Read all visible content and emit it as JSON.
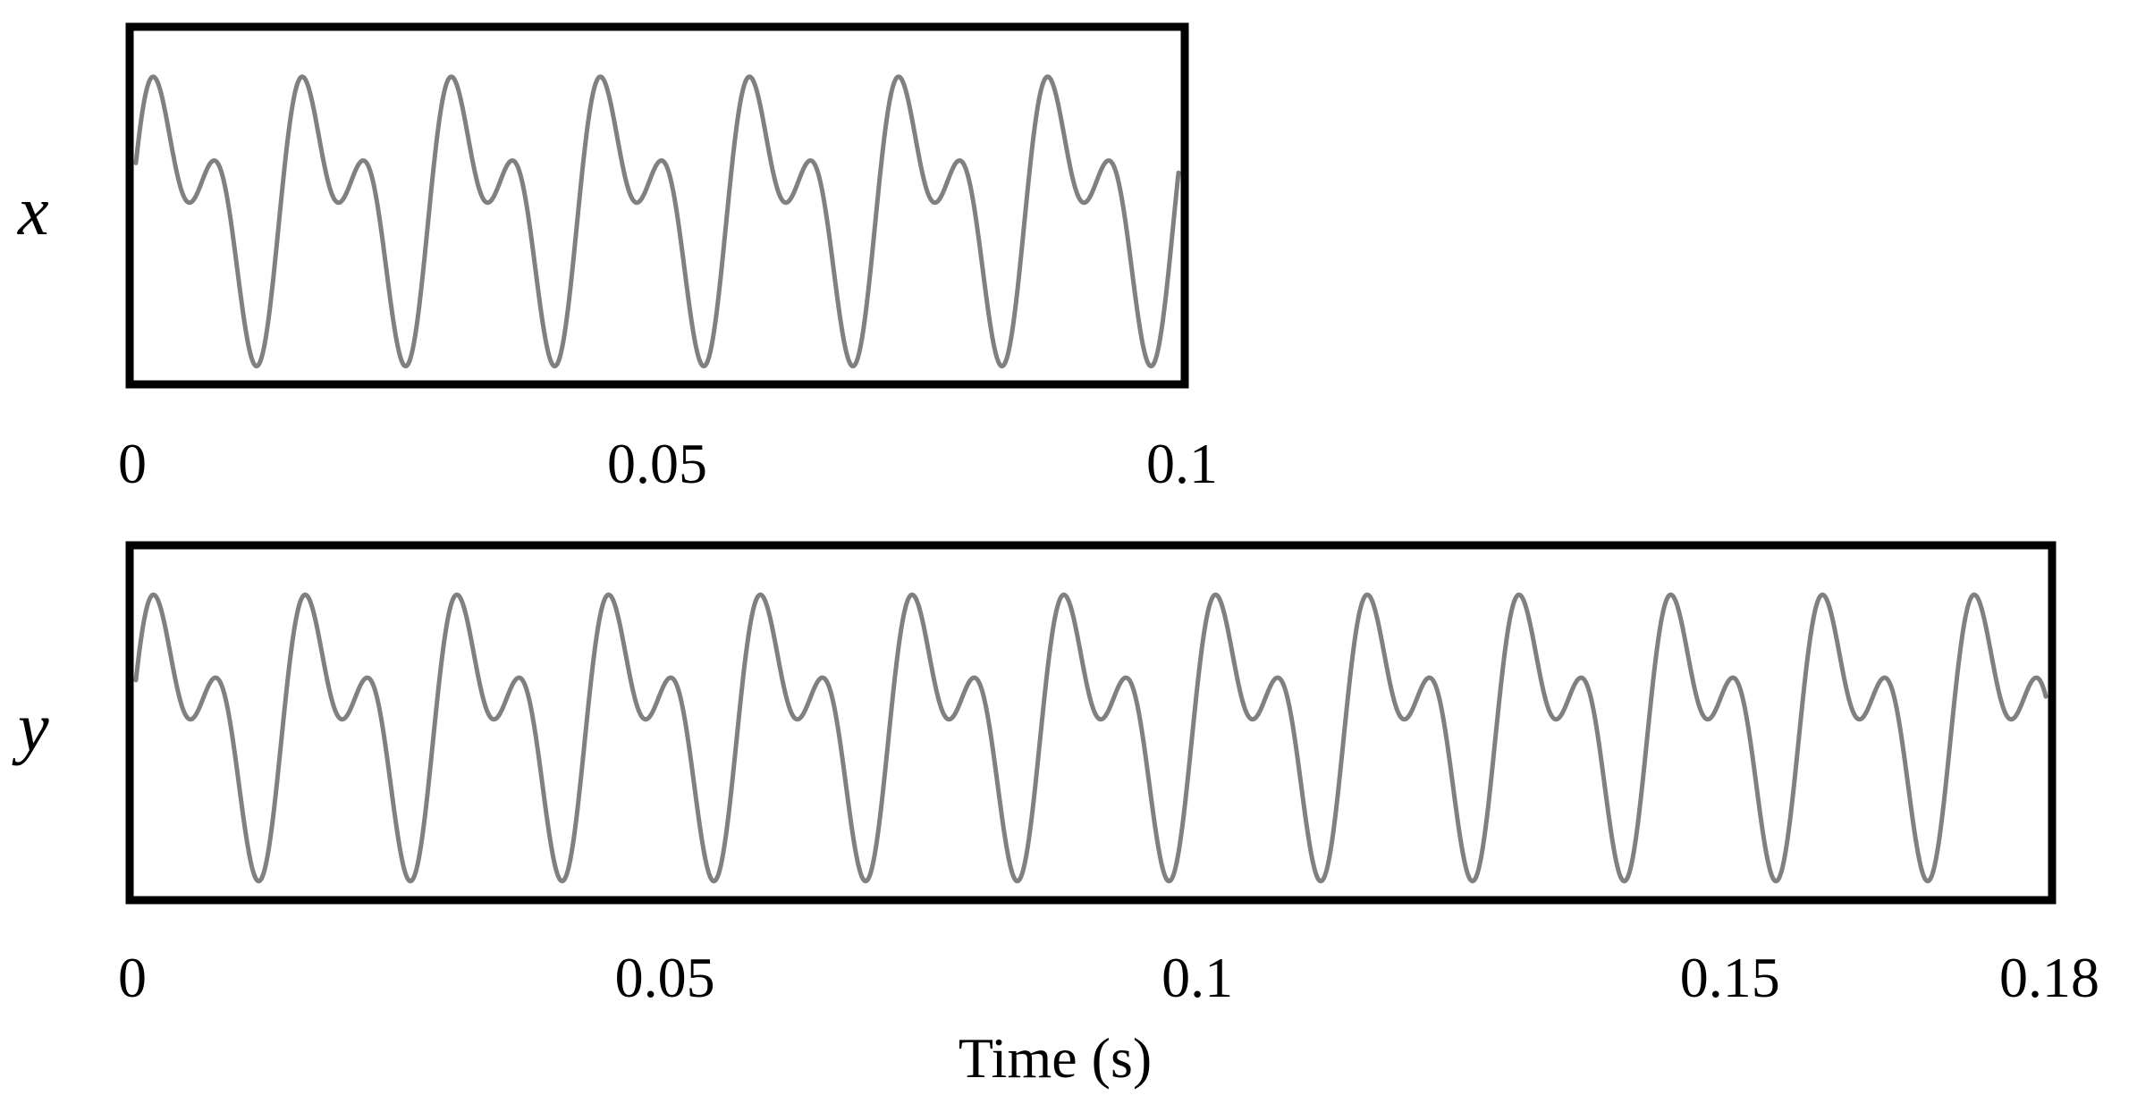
{
  "chart_data": [
    {
      "type": "line",
      "ylabel": "x",
      "xlabel": "",
      "xlim": [
        0,
        0.1
      ],
      "xticks": [
        {
          "value": 0,
          "label": "0"
        },
        {
          "value": 0.05,
          "label": "0.05"
        },
        {
          "value": 0.1,
          "label": "0.1"
        }
      ],
      "ylim": [
        -1.15,
        1.15
      ],
      "grid": false,
      "line_color": "#808080",
      "waveform": {
        "fundamental_period_s": 0.0143,
        "components": [
          {
            "harmonic": 1,
            "amplitude": 0.62,
            "phase_rad": 0.0
          },
          {
            "harmonic": 2,
            "amplitude": 0.5,
            "phase_rad": 0.6
          }
        ]
      },
      "series": [
        {
          "values_note": "",
          "peaks_high": [
            0.003,
            0.0173,
            0.0316,
            0.0459,
            0.0602,
            0.0745,
            0.0888
          ],
          "peaks_low": [
            0.0125,
            0.0268,
            0.0411,
            0.0554,
            0.0697,
            0.084
          ]
        }
      ]
    },
    {
      "type": "line",
      "ylabel": "y",
      "xlabel": "Time (s)",
      "xlim": [
        0,
        0.18
      ],
      "xticks": [
        {
          "value": 0,
          "label": "0"
        },
        {
          "value": 0.05,
          "label": "0.05"
        },
        {
          "value": 0.1,
          "label": "0.1"
        },
        {
          "value": 0.15,
          "label": "0.15"
        },
        {
          "value": 0.18,
          "label": "0.18"
        }
      ],
      "ylim": [
        -1.15,
        1.15
      ],
      "grid": false,
      "line_color": "#808080",
      "waveform": {
        "fundamental_period_s": 0.0143,
        "components": [
          {
            "harmonic": 1,
            "amplitude": 0.62,
            "phase_rad": 0.0
          },
          {
            "harmonic": 2,
            "amplitude": 0.5,
            "phase_rad": 0.6
          }
        ]
      },
      "series": [
        {
          "values_note": "",
          "peaks_high": [
            0.003,
            0.0173,
            0.0316,
            0.0459,
            0.0602,
            0.0745,
            0.0888,
            0.1031,
            0.1174,
            0.1317,
            0.146,
            0.1603,
            0.1746
          ],
          "peaks_low": [
            0.0125,
            0.0268,
            0.0411,
            0.0554,
            0.0697,
            0.084,
            0.0983,
            0.1126,
            0.1269,
            0.1412,
            0.1555,
            0.1698
          ]
        }
      ]
    }
  ]
}
